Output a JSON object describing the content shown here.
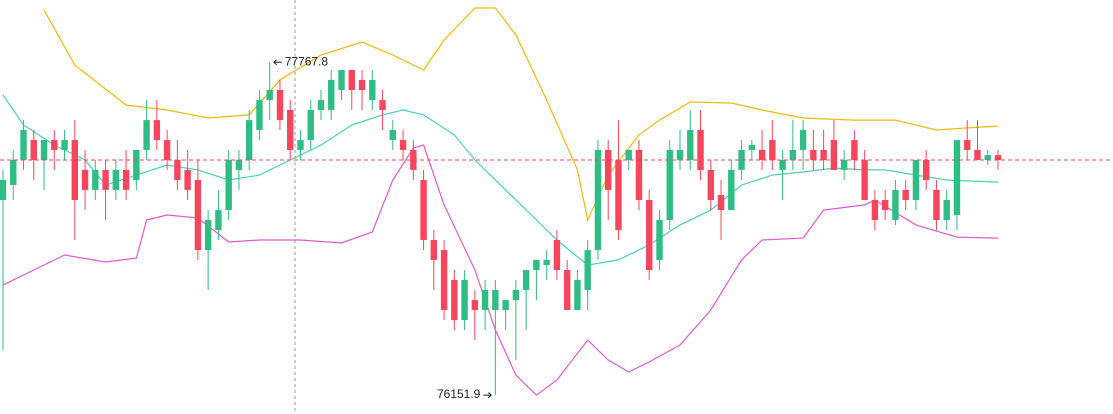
{
  "chart_data": {
    "type": "candlestick",
    "up_color": "#2ebd85",
    "down_color": "#f6465d",
    "ylim": [
      76060,
      78070
    ],
    "open": [
      77099,
      77172,
      77293,
      77390,
      77293,
      77390,
      77342,
      77390,
      77245,
      77148,
      77245,
      77148,
      77245,
      77196,
      77342,
      77487,
      77390,
      77293,
      77245,
      77196,
      76856,
      76953,
      77050,
      77245,
      77293,
      77439,
      77584,
      77633,
      77536,
      77342,
      77390,
      77536,
      77536,
      77633,
      77730,
      77682,
      77584,
      77584,
      77390,
      77390,
      77342,
      77196,
      76905,
      76856,
      76711,
      76516,
      76613,
      76565,
      76565,
      76565,
      76613,
      76662,
      76759,
      76783,
      76905,
      76759,
      76565,
      76662,
      76856,
      77342,
      77293,
      77293,
      77342,
      77099,
      76808,
      77002,
      77293,
      77293,
      77439,
      77245,
      77123,
      77050,
      77245,
      77342,
      77342,
      77390,
      77245,
      77293,
      77342,
      77342,
      77342,
      77390,
      77245,
      77390,
      77293,
      77099,
      77099,
      77002,
      77148,
      77099,
      77293,
      77148,
      77002,
      77026,
      77390,
      77342,
      77293,
      77317
    ],
    "high": [
      77245,
      77342,
      77487,
      77439,
      77390,
      77439,
      77439,
      77487,
      77342,
      77293,
      77293,
      77293,
      77342,
      77342,
      77584,
      77584,
      77439,
      77390,
      77342,
      77293,
      77050,
      77148,
      77342,
      77342,
      77536,
      77633,
      77767.8,
      77682,
      77584,
      77439,
      77584,
      77633,
      77730,
      77730,
      77730,
      77730,
      77730,
      77633,
      77487,
      77439,
      77390,
      77245,
      76953,
      76905,
      76759,
      76759,
      76662,
      76711,
      76711,
      76613,
      76711,
      76759,
      76808,
      76856,
      76953,
      76808,
      76759,
      76905,
      77390,
      77390,
      77487,
      77342,
      77390,
      77148,
      77050,
      77390,
      77439,
      77536,
      77536,
      77293,
      77196,
      77293,
      77390,
      77390,
      77439,
      77487,
      77342,
      77487,
      77487,
      77439,
      77439,
      77487,
      77342,
      77439,
      77342,
      77148,
      77148,
      77196,
      77196,
      77293,
      77342,
      77196,
      77148,
      77390,
      77487,
      77487,
      77342,
      77342
    ],
    "low": [
      76371,
      77099,
      77245,
      77196,
      77148,
      77245,
      77293,
      76905,
      77050,
      77099,
      77002,
      77099,
      77099,
      77148,
      77293,
      77342,
      77245,
      77148,
      77099,
      76808,
      76662,
      76905,
      77002,
      77148,
      77245,
      77390,
      77487,
      77439,
      77293,
      77293,
      77342,
      77487,
      77487,
      77584,
      77536,
      77536,
      77536,
      77439,
      77342,
      77293,
      77196,
      76856,
      76662,
      76516,
      76468,
      76468,
      76419,
      76468,
      76151.9,
      76468,
      76322,
      76468,
      76613,
      76711,
      76711,
      76565,
      76565,
      76565,
      76808,
      77002,
      76905,
      77245,
      77050,
      76711,
      76759,
      76953,
      77245,
      77245,
      77196,
      77050,
      76905,
      77050,
      77196,
      77293,
      77245,
      77245,
      77099,
      77245,
      77245,
      77245,
      77245,
      77245,
      77196,
      77245,
      77099,
      76953,
      77002,
      76978,
      77050,
      77050,
      77148,
      76953,
      76953,
      76953,
      77293,
      77293,
      77269,
      77245
    ],
    "close": [
      77196,
      77293,
      77439,
      77293,
      77390,
      77342,
      77390,
      77099,
      77148,
      77245,
      77148,
      77245,
      77148,
      77342,
      77487,
      77390,
      77293,
      77196,
      77148,
      76856,
      77002,
      77050,
      77293,
      77293,
      77487,
      77584,
      77633,
      77487,
      77342,
      77390,
      77536,
      77584,
      77682,
      77730,
      77633,
      77633,
      77682,
      77536,
      77439,
      77342,
      77245,
      76905,
      76808,
      76565,
      76516,
      76711,
      76565,
      76662,
      76662,
      76613,
      76662,
      76759,
      76808,
      76808,
      76759,
      76565,
      76711,
      76856,
      77342,
      77148,
      76953,
      77342,
      77099,
      76759,
      77002,
      77342,
      77342,
      77439,
      77245,
      77099,
      77050,
      77245,
      77342,
      77366,
      77293,
      77293,
      77293,
      77342,
      77439,
      77293,
      77293,
      77245,
      77293,
      77293,
      77099,
      77002,
      77050,
      77148,
      77099,
      77293,
      77196,
      77002,
      77099,
      77390,
      77342,
      77293,
      77317,
      77293
    ],
    "bands": [
      {
        "color": "#f0b90b",
        "x": [
          4,
          7,
          12,
          16,
          20,
          24,
          27,
          31,
          35,
          38,
          41,
          43,
          46,
          48,
          50,
          53,
          56,
          57,
          59,
          62,
          64,
          67,
          71,
          74,
          78,
          83,
          87,
          91,
          94,
          97
        ],
        "values": [
          78021,
          77754,
          77560,
          77536,
          77497,
          77512,
          77682,
          77803,
          77866,
          77803,
          77730,
          77876,
          78031,
          78031,
          77900,
          77584,
          77245,
          77002,
          77220,
          77415,
          77487,
          77575,
          77570,
          77536,
          77497,
          77487,
          77487,
          77439,
          77449,
          77458
        ]
      },
      {
        "color": "#4bd1b5",
        "x": [
          0,
          2,
          5,
          8,
          10,
          13,
          16,
          19,
          22,
          25,
          28,
          31,
          34,
          37,
          39,
          41,
          44,
          46,
          49,
          52,
          54,
          57,
          60,
          63,
          66,
          69,
          72,
          75,
          78,
          81,
          84,
          86,
          89,
          92,
          97
        ],
        "values": [
          77609,
          77463,
          77366,
          77293,
          77172,
          77220,
          77269,
          77245,
          77196,
          77220,
          77293,
          77366,
          77463,
          77512,
          77536,
          77512,
          77415,
          77293,
          77148,
          77002,
          76905,
          76783,
          76808,
          76881,
          76978,
          77050,
          77172,
          77220,
          77235,
          77254,
          77245,
          77245,
          77220,
          77196,
          77186
        ]
      },
      {
        "color": "#e05bd0",
        "x": [
          0,
          3,
          6,
          10,
          13,
          14,
          16,
          19,
          22,
          25,
          29,
          33,
          36,
          38,
          40,
          41,
          43,
          46,
          48,
          50,
          52,
          54,
          57,
          59,
          61,
          63,
          66,
          69,
          72,
          74,
          78,
          80,
          84,
          85,
          89,
          93,
          97
        ],
        "values": [
          76686,
          76759,
          76832,
          76798,
          76817,
          77002,
          77026,
          77012,
          76895,
          76905,
          76905,
          76890,
          76944,
          77196,
          77351,
          77366,
          77075,
          76759,
          76468,
          76249,
          76152,
          76225,
          76419,
          76322,
          76264,
          76313,
          76395,
          76565,
          76808,
          76905,
          76914,
          77050,
          77075,
          77099,
          76978,
          76919,
          76914
        ]
      }
    ]
  }
}
